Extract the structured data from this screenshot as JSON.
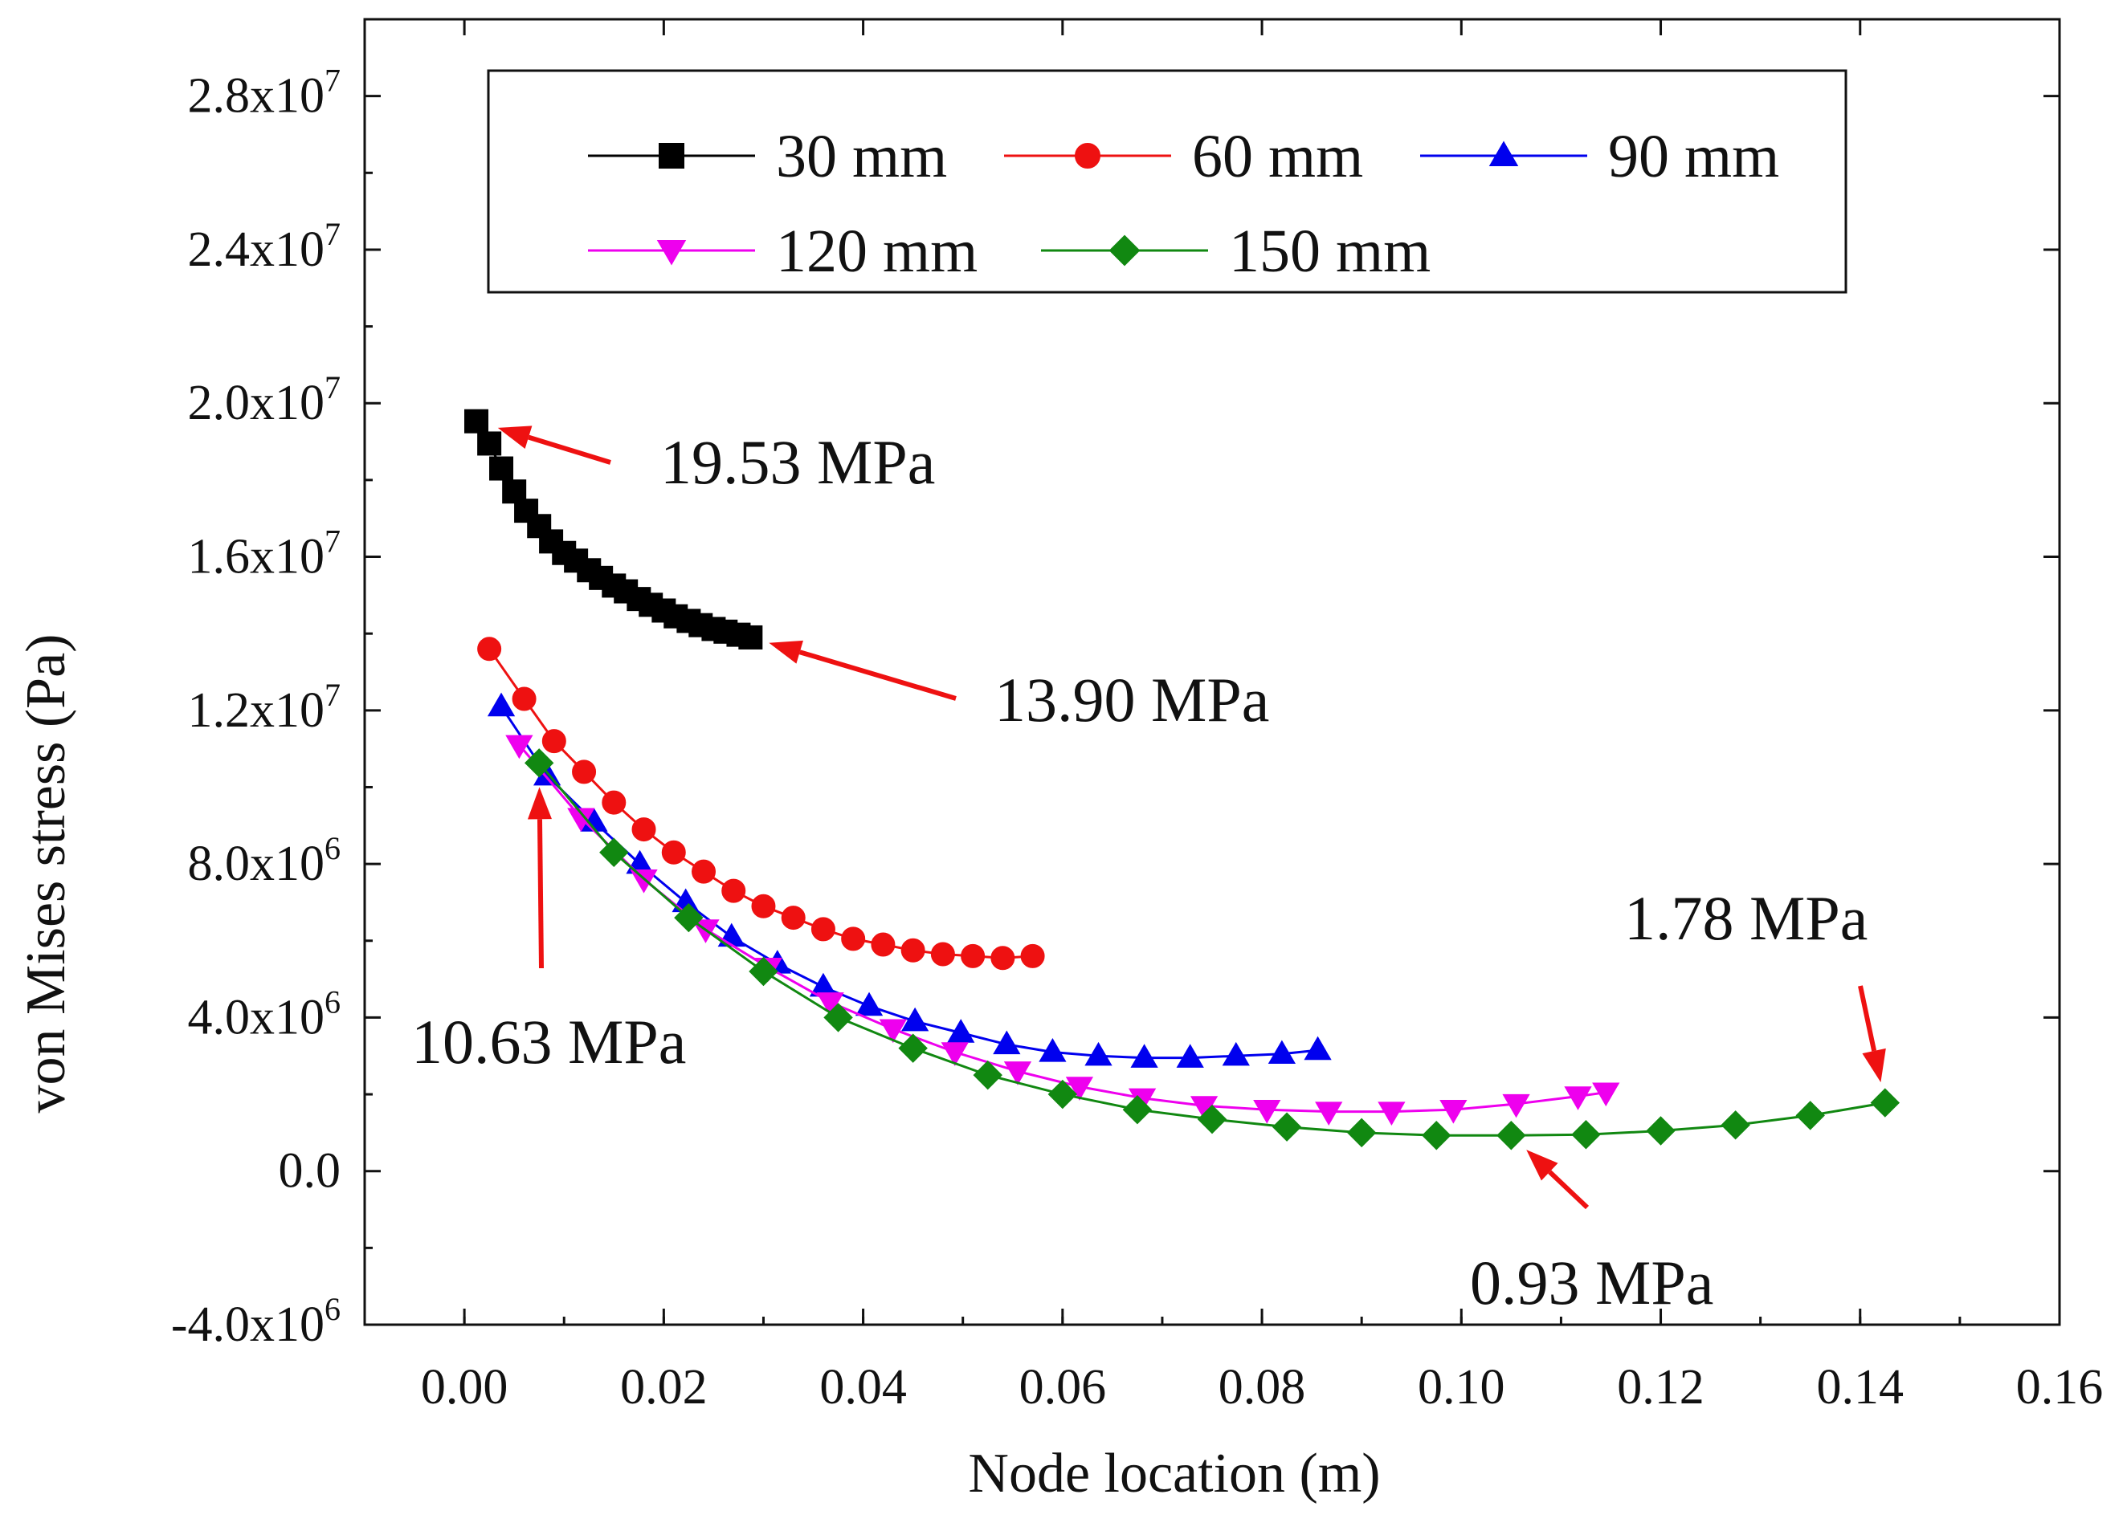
{
  "chart_data": {
    "type": "line",
    "title": "",
    "xlabel": "Node location (m)",
    "ylabel": "von Mises stress (Pa)",
    "xlim": [
      -0.01,
      0.16
    ],
    "ylim": [
      -4000000,
      30000000
    ],
    "grid": false,
    "legend_position": "top",
    "x_ticks": [
      {
        "value": 0.0,
        "label": "0.00"
      },
      {
        "value": 0.02,
        "label": "0.02"
      },
      {
        "value": 0.04,
        "label": "0.04"
      },
      {
        "value": 0.06,
        "label": "0.06"
      },
      {
        "value": 0.08,
        "label": "0.08"
      },
      {
        "value": 0.1,
        "label": "0.10"
      },
      {
        "value": 0.12,
        "label": "0.12"
      },
      {
        "value": 0.14,
        "label": "0.14"
      },
      {
        "value": 0.16,
        "label": "0.16"
      }
    ],
    "y_ticks": [
      {
        "value": -4000000,
        "mantissa": "-4.0x10",
        "exp": "6"
      },
      {
        "value": 0,
        "mantissa": "0.0",
        "exp": ""
      },
      {
        "value": 4000000,
        "mantissa": "4.0x10",
        "exp": "6"
      },
      {
        "value": 8000000,
        "mantissa": "8.0x10",
        "exp": "6"
      },
      {
        "value": 12000000,
        "mantissa": "1.2x10",
        "exp": "7"
      },
      {
        "value": 16000000,
        "mantissa": "1.6x10",
        "exp": "7"
      },
      {
        "value": 20000000,
        "mantissa": "2.0x10",
        "exp": "7"
      },
      {
        "value": 24000000,
        "mantissa": "2.4x10",
        "exp": "7"
      },
      {
        "value": 28000000,
        "mantissa": "2.8x10",
        "exp": "7"
      }
    ],
    "series": [
      {
        "name": "30 mm",
        "color": "#000000",
        "marker": "square",
        "x": [
          0.0012,
          0.0025,
          0.0037,
          0.005,
          0.0062,
          0.0075,
          0.0087,
          0.01,
          0.0112,
          0.0125,
          0.0137,
          0.015,
          0.0162,
          0.0175,
          0.0187,
          0.02,
          0.0212,
          0.0225,
          0.0237,
          0.025,
          0.0262,
          0.0275,
          0.0287
        ],
        "y": [
          19530000,
          18950000,
          18300000,
          17700000,
          17200000,
          16800000,
          16400000,
          16100000,
          15900000,
          15650000,
          15450000,
          15250000,
          15100000,
          14900000,
          14750000,
          14600000,
          14450000,
          14330000,
          14220000,
          14120000,
          14050000,
          13970000,
          13900000
        ]
      },
      {
        "name": "60 mm",
        "color": "#ee1111",
        "marker": "circle",
        "x": [
          0.0025,
          0.006,
          0.009,
          0.012,
          0.015,
          0.018,
          0.021,
          0.024,
          0.027,
          0.03,
          0.033,
          0.036,
          0.039,
          0.042,
          0.045,
          0.048,
          0.051,
          0.054,
          0.057
        ],
        "y": [
          13600000,
          12300000,
          11200000,
          10400000,
          9600000,
          8900000,
          8300000,
          7800000,
          7300000,
          6900000,
          6600000,
          6300000,
          6050000,
          5900000,
          5750000,
          5650000,
          5600000,
          5550000,
          5600000
        ]
      },
      {
        "name": "90 mm",
        "color": "#0000ee",
        "marker": "triangle-up",
        "x": [
          0.0037,
          0.0083,
          0.013,
          0.0176,
          0.0222,
          0.0268,
          0.0314,
          0.036,
          0.0406,
          0.0452,
          0.0498,
          0.0544,
          0.059,
          0.0636,
          0.0682,
          0.0728,
          0.0774,
          0.082,
          0.0856
        ],
        "y": [
          12100000,
          10300000,
          9100000,
          8000000,
          7000000,
          6100000,
          5400000,
          4800000,
          4300000,
          3900000,
          3600000,
          3300000,
          3100000,
          3000000,
          2950000,
          2950000,
          3000000,
          3050000,
          3150000
        ]
      },
      {
        "name": "120 mm",
        "color": "#ee00ee",
        "marker": "triangle-down",
        "x": [
          0.0055,
          0.0117,
          0.018,
          0.0242,
          0.0305,
          0.0367,
          0.043,
          0.0492,
          0.0555,
          0.0617,
          0.068,
          0.0742,
          0.0805,
          0.0867,
          0.093,
          0.0992,
          0.1055,
          0.1117,
          0.1145
        ],
        "y": [
          11100000,
          9200000,
          7600000,
          6300000,
          5300000,
          4400000,
          3700000,
          3100000,
          2600000,
          2200000,
          1900000,
          1700000,
          1600000,
          1550000,
          1550000,
          1600000,
          1750000,
          1950000,
          2050000
        ]
      },
      {
        "name": "150 mm",
        "color": "#118811",
        "marker": "diamond",
        "x": [
          0.0075,
          0.015,
          0.0225,
          0.03,
          0.0375,
          0.045,
          0.0525,
          0.06,
          0.0675,
          0.075,
          0.0825,
          0.09,
          0.0975,
          0.105,
          0.1125,
          0.12,
          0.1275,
          0.135,
          0.1425
        ],
        "y": [
          10630000,
          8300000,
          6600000,
          5200000,
          4000000,
          3200000,
          2500000,
          2000000,
          1600000,
          1350000,
          1150000,
          1000000,
          930000,
          930000,
          950000,
          1050000,
          1200000,
          1450000,
          1780000
        ]
      }
    ],
    "annotations": [
      {
        "id": "max30",
        "text": "19.53 MPa",
        "point": [
          0.0012,
          19530000
        ]
      },
      {
        "id": "end30",
        "text": "13.90 MPa",
        "point": [
          0.0287,
          13900000
        ]
      },
      {
        "id": "max150",
        "text": "10.63 MPa",
        "point": [
          0.0075,
          10630000
        ]
      },
      {
        "id": "min150",
        "text": "0.93 MPa",
        "point": [
          0.105,
          930000
        ]
      },
      {
        "id": "end150",
        "text": "1.78 MPa",
        "point": [
          0.1425,
          1780000
        ]
      }
    ]
  }
}
